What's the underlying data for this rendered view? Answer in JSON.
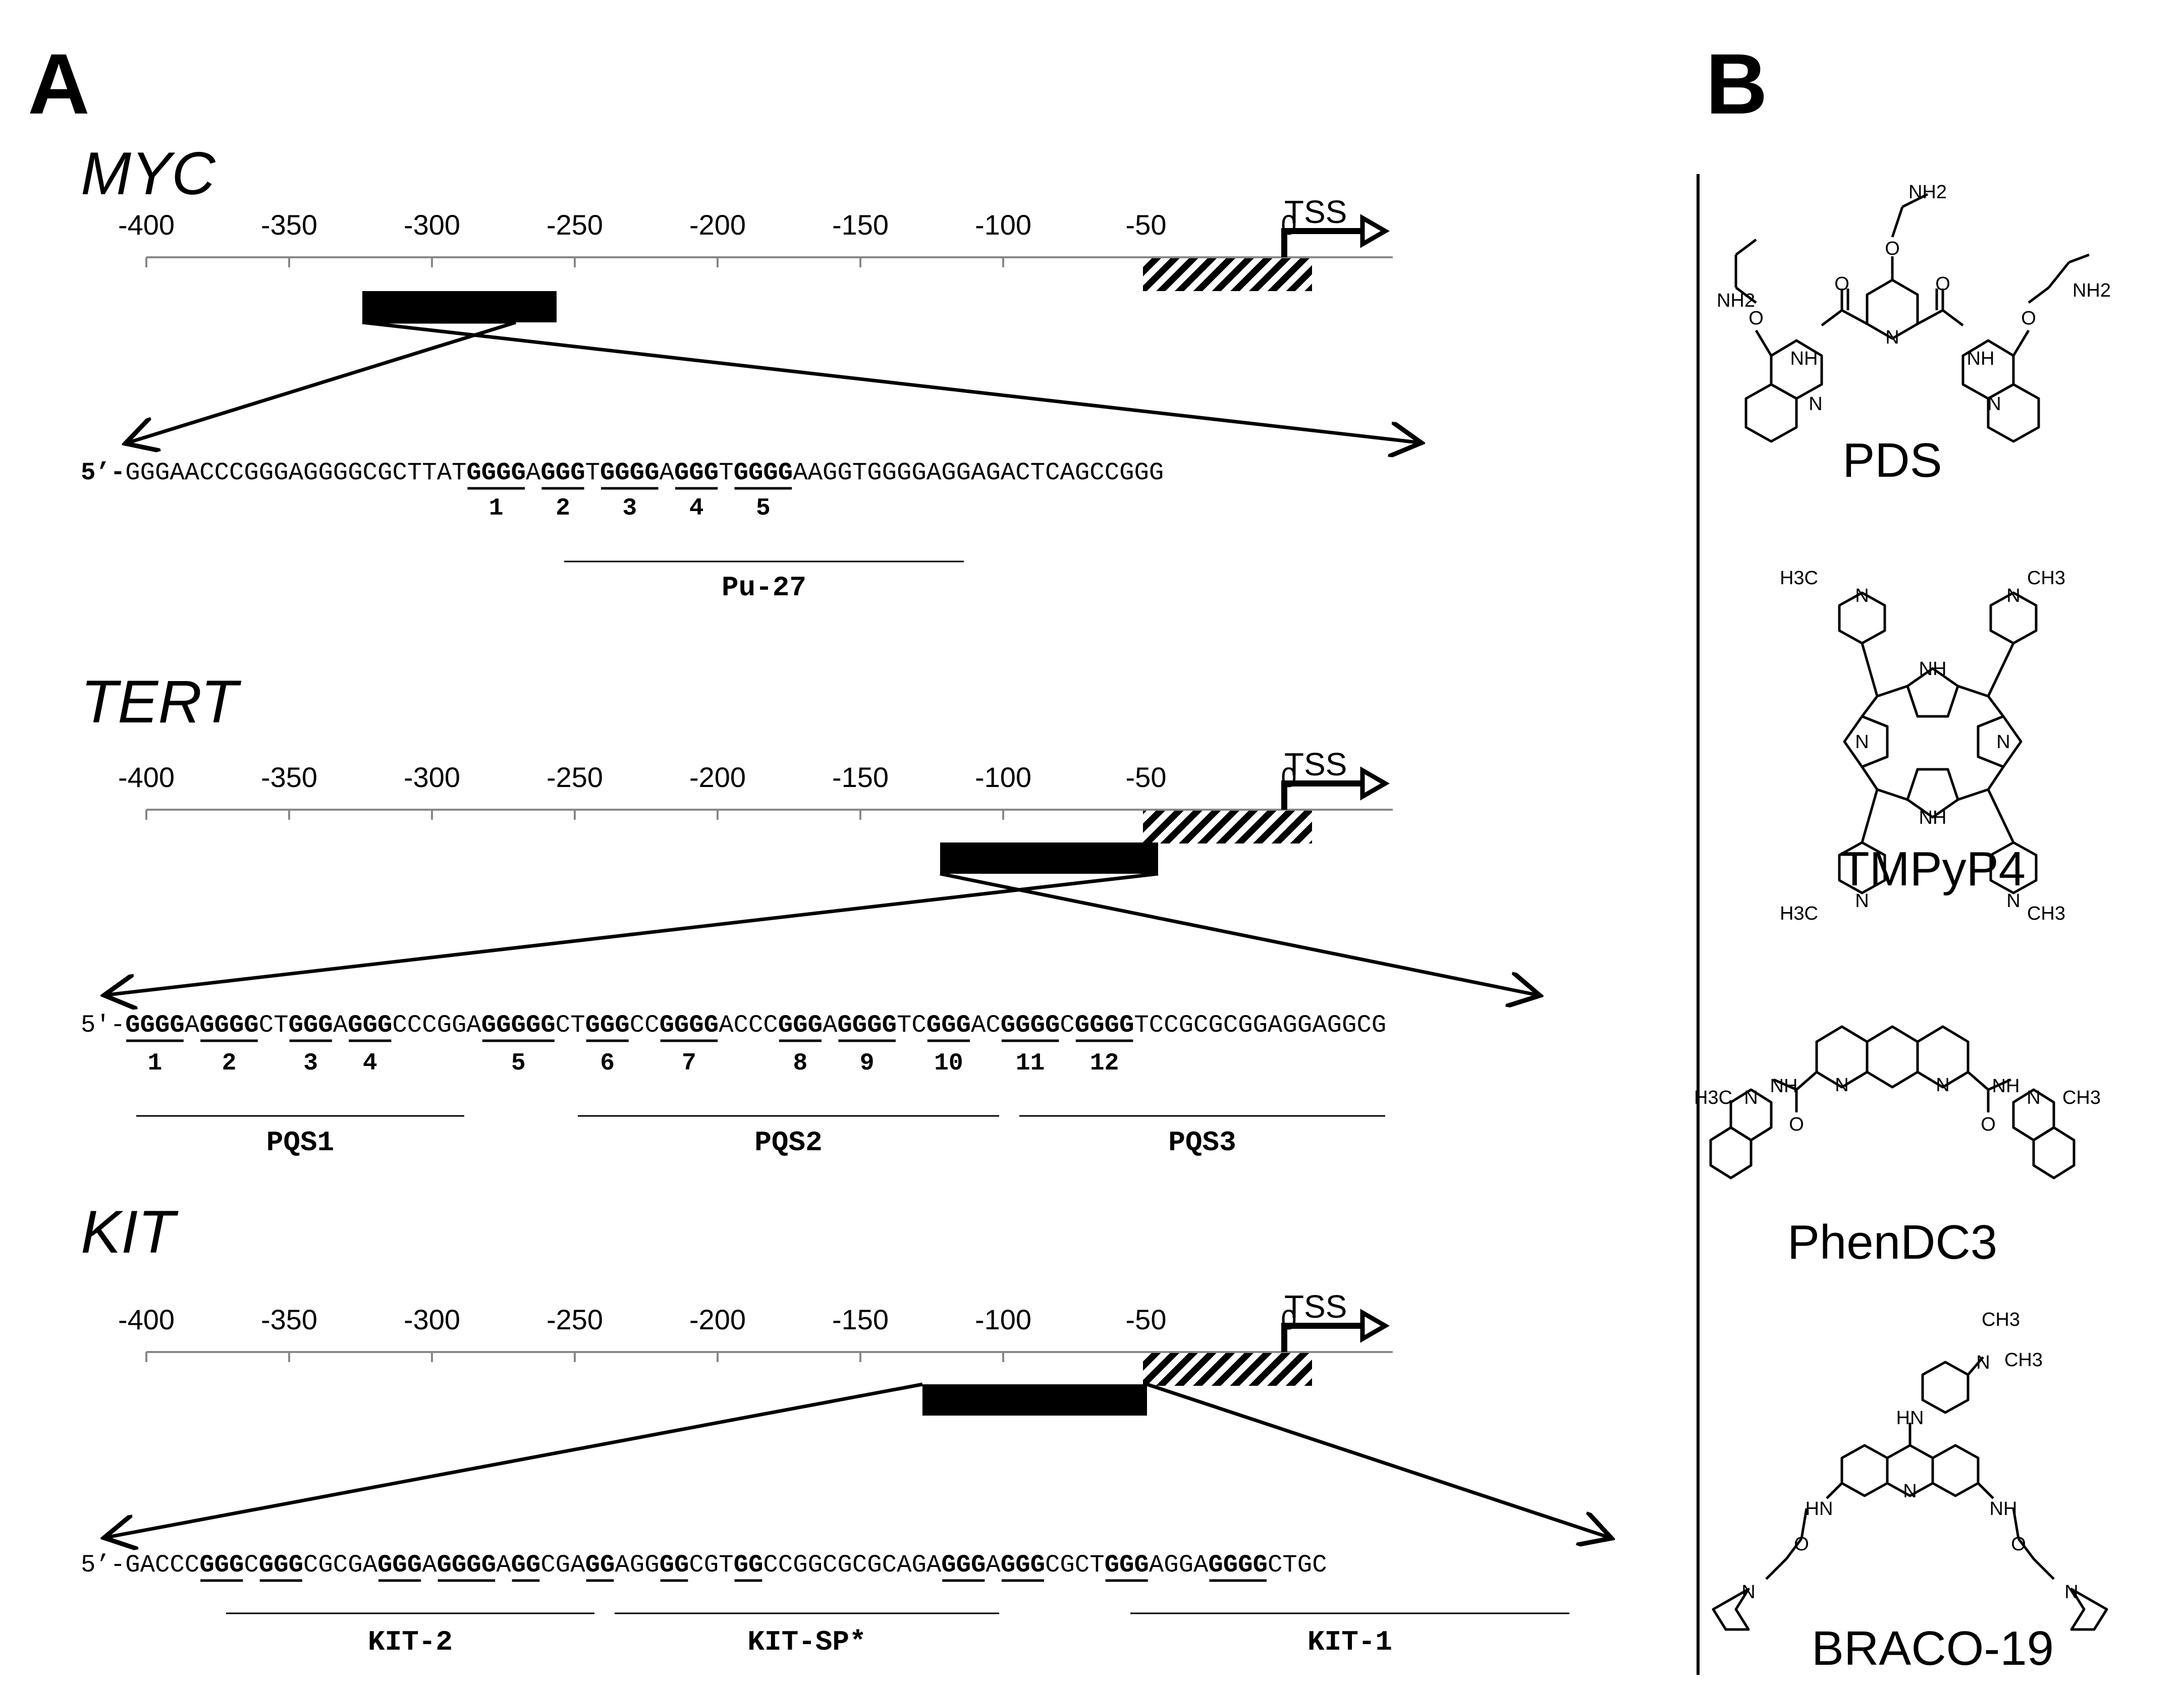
{
  "panel_a_label": "A",
  "panel_b_label": "B",
  "axis_ticks": [
    "-400",
    "-350",
    "-300",
    "-250",
    "-200",
    "-150",
    "-100",
    "-50",
    "0"
  ],
  "tss_label": "TSS",
  "genes": [
    {
      "name": "MYC",
      "prefix": "5’-",
      "segments": [
        {
          "t": "GGGAACCCGGGAGGGGCGCTTAT",
          "b": false
        },
        {
          "t": "GGGG",
          "b": true
        },
        {
          "t": "A",
          "b": false
        },
        {
          "t": "GGG",
          "b": true
        },
        {
          "t": "T",
          "b": false
        },
        {
          "t": "GGGG",
          "b": true
        },
        {
          "t": "A",
          "b": false
        },
        {
          "t": "GGG",
          "b": true
        },
        {
          "t": "T",
          "b": false
        },
        {
          "t": "GGGG",
          "b": true
        },
        {
          "t": "AAGGTGGGGAGGAGACTCAGCCGGG",
          "b": false
        }
      ],
      "tract_numbers": [
        "1",
        "2",
        "3",
        "4",
        "5"
      ],
      "regions": [
        "Pu-27"
      ]
    },
    {
      "name": "TERT",
      "prefix": "5'-",
      "segments": [
        {
          "t": "GGGG",
          "b": true
        },
        {
          "t": "A",
          "b": false
        },
        {
          "t": "GGGG",
          "b": true
        },
        {
          "t": "CT",
          "b": false
        },
        {
          "t": "GGG",
          "b": true
        },
        {
          "t": "A",
          "b": false
        },
        {
          "t": "GGG",
          "b": true
        },
        {
          "t": "CCCGGA",
          "b": false
        },
        {
          "t": "GGGGG",
          "b": true
        },
        {
          "t": "CT",
          "b": false
        },
        {
          "t": "GGG",
          "b": true
        },
        {
          "t": "CC",
          "b": false
        },
        {
          "t": "GGGG",
          "b": true
        },
        {
          "t": "ACCC",
          "b": false
        },
        {
          "t": "GGG",
          "b": true
        },
        {
          "t": "A",
          "b": false
        },
        {
          "t": "GGGG",
          "b": true
        },
        {
          "t": "TC",
          "b": false
        },
        {
          "t": "GGG",
          "b": true
        },
        {
          "t": "AC",
          "b": false
        },
        {
          "t": "GGGG",
          "b": true
        },
        {
          "t": "C",
          "b": false
        },
        {
          "t": "GGGG",
          "b": true
        },
        {
          "t": "TCCGCGCGGAGGAGGCG",
          "b": false
        }
      ],
      "tract_numbers": [
        "1",
        "2",
        "3",
        "4",
        "5",
        "6",
        "7",
        "8",
        "9",
        "10",
        "11",
        "12"
      ],
      "regions": [
        "PQS1",
        "PQS2",
        "PQS3"
      ]
    },
    {
      "name": "KIT",
      "prefix": "5’-",
      "segments": [
        {
          "t": "GACCC",
          "b": false
        },
        {
          "t": "GGG",
          "b": true
        },
        {
          "t": "C",
          "b": false
        },
        {
          "t": "GGG",
          "b": true
        },
        {
          "t": "CGCGA",
          "b": false
        },
        {
          "t": "GGG",
          "b": true
        },
        {
          "t": "A",
          "b": false
        },
        {
          "t": "GGGG",
          "b": true
        },
        {
          "t": "A",
          "b": false
        },
        {
          "t": "GG",
          "b": true
        },
        {
          "t": "CGA",
          "b": false
        },
        {
          "t": "GG",
          "b": true
        },
        {
          "t": "AGG",
          "b": false
        },
        {
          "t": "GG",
          "b": true
        },
        {
          "t": "CGT",
          "b": false
        },
        {
          "t": "GG",
          "b": true
        },
        {
          "t": "CCGGCGCGCAGA",
          "b": false
        },
        {
          "t": "GGG",
          "b": true
        },
        {
          "t": "A",
          "b": false
        },
        {
          "t": "GGG",
          "b": true
        },
        {
          "t": "CGCT",
          "b": false
        },
        {
          "t": "GGG",
          "b": true
        },
        {
          "t": "AGGA",
          "b": false
        },
        {
          "t": "GGGG",
          "b": true
        },
        {
          "t": "CTGC",
          "b": false
        }
      ],
      "tract_numbers": [],
      "regions": [
        "KIT-2",
        "KIT-SP*",
        "KIT-1"
      ]
    }
  ],
  "compounds": [
    "PDS",
    "TMPyP4",
    "PhenDC3",
    "BRACO-19"
  ],
  "atoms": {
    "pds": [
      "NH2",
      "NH2",
      "NH2",
      "O",
      "O",
      "O",
      "O",
      "O",
      "N",
      "NH",
      "NH",
      "N",
      "N"
    ],
    "tmpyp4": [
      "H3C",
      "CH3",
      "H3C",
      "CH3",
      "N",
      "N",
      "N",
      "N",
      "NH",
      "NH",
      "N",
      "N"
    ],
    "phendc3": [
      "NH",
      "NH",
      "N",
      "N",
      "O",
      "O",
      "H3C",
      "CH3",
      "N",
      "N"
    ],
    "braco": [
      "CH3",
      "CH3",
      "N",
      "HN",
      "N",
      "HN",
      "NH",
      "O",
      "O",
      "N",
      "N"
    ]
  }
}
